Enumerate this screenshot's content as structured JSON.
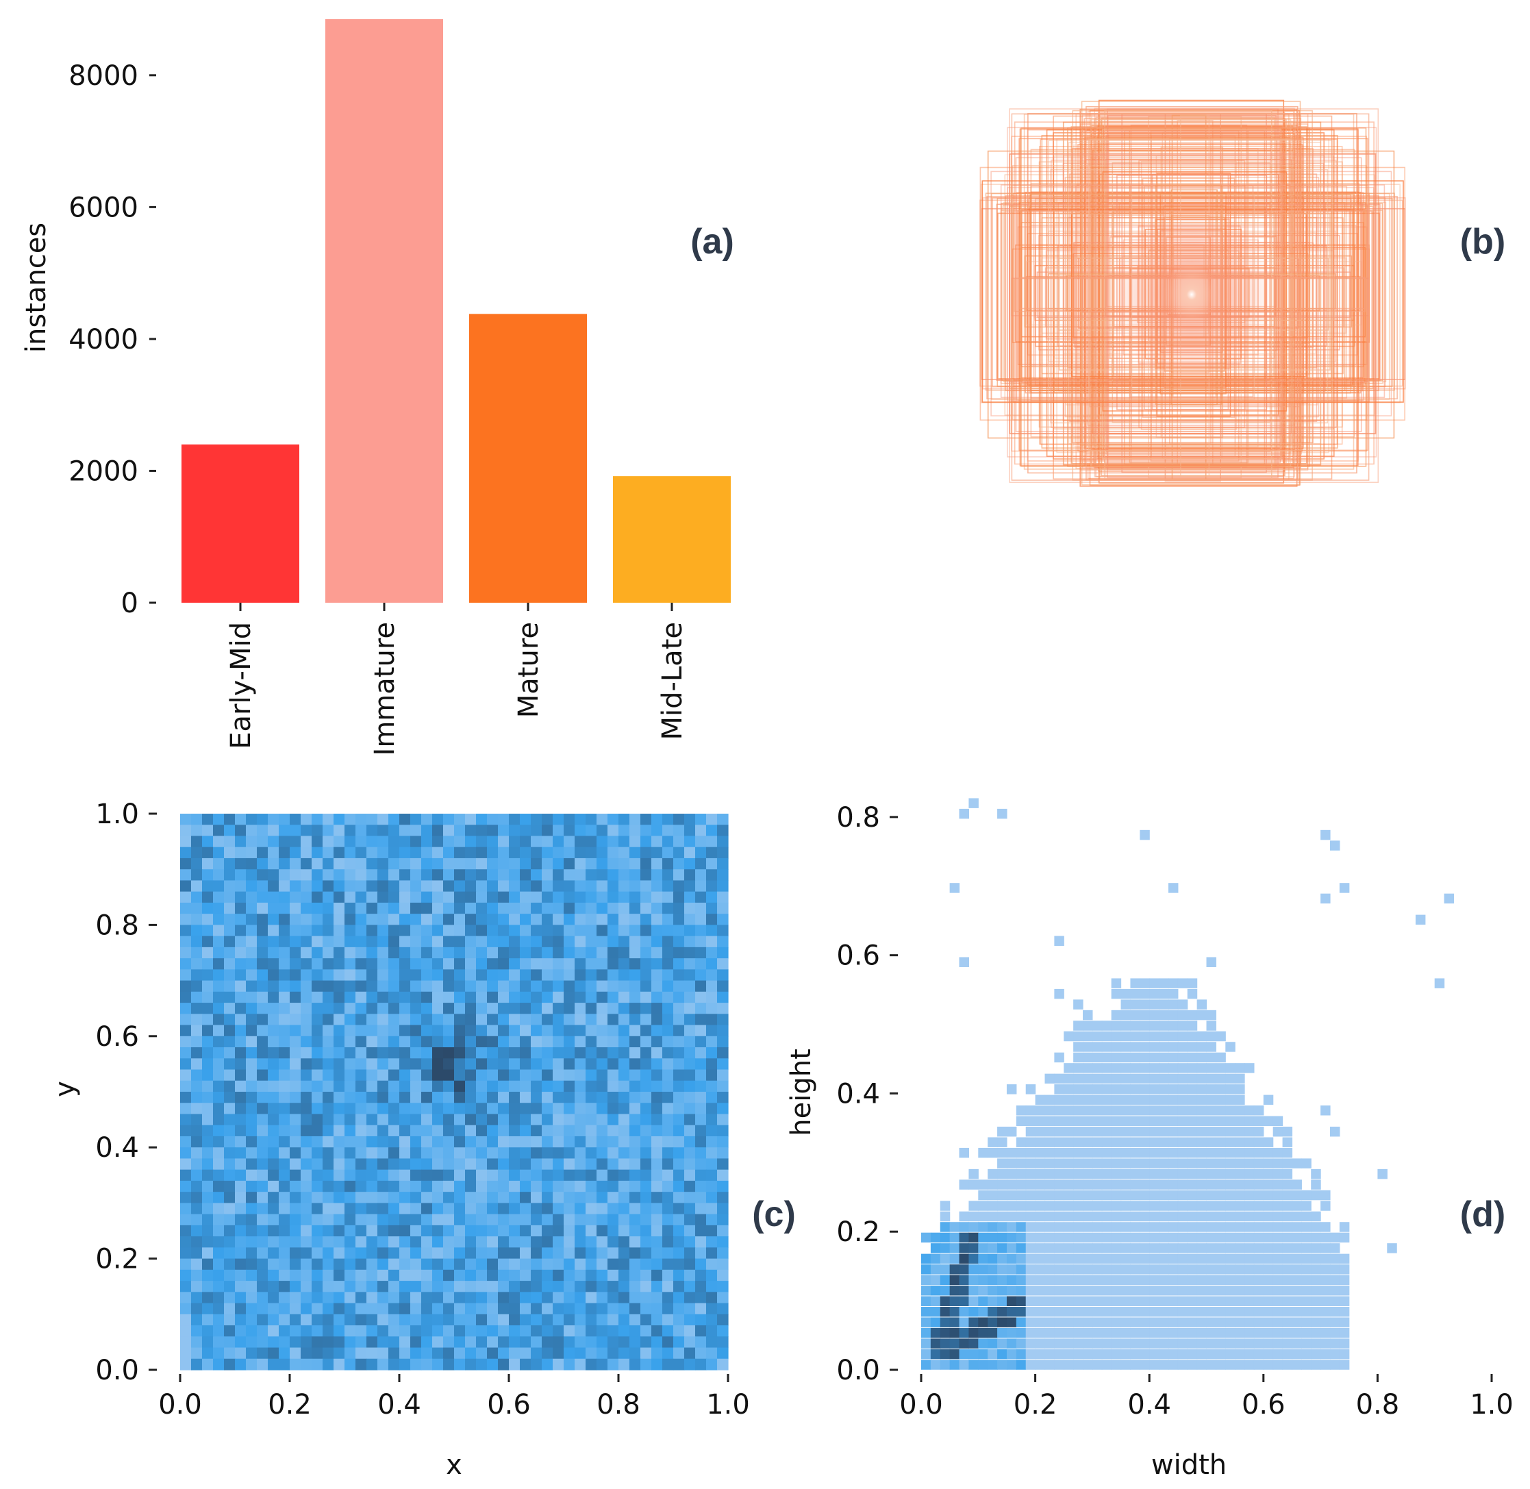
{
  "panels": {
    "a": "(a)",
    "b": "(b)",
    "c": "(c)",
    "d": "(d)"
  },
  "colors": {
    "early_mid": "#ff3535",
    "immature": "#fc9d92",
    "mature": "#fc7320",
    "mid_late": "#fdad21",
    "blue_light": "#a9cbf0",
    "blue_mid": "#3aa2ec",
    "blue_dark": "#2c4a6a"
  },
  "chart_data": [
    {
      "id": "a",
      "type": "bar",
      "categories": [
        "Early-Mid",
        "Immature",
        "Mature",
        "Mid-Late"
      ],
      "values": [
        2400,
        8850,
        4380,
        1920
      ],
      "title": "",
      "xlabel": "",
      "ylabel": "instances",
      "ylim": [
        0,
        8850
      ],
      "yticks": [
        0,
        2000,
        4000,
        6000,
        8000
      ],
      "ytick_labels": [
        "0",
        "2000",
        "4000",
        "6000",
        "8000"
      ],
      "grid": false
    },
    {
      "id": "b",
      "type": "scatter",
      "description_type": "overlaid bounding boxes centered at image center",
      "xlim": [
        0,
        1
      ],
      "ylim": [
        0,
        1
      ]
    },
    {
      "id": "c",
      "type": "heatmap",
      "xlabel": "x",
      "ylabel": "y",
      "xlim": [
        0,
        1
      ],
      "ylim": [
        0,
        1
      ],
      "xticks": [
        0.0,
        0.2,
        0.4,
        0.6,
        0.8,
        1.0
      ],
      "xtick_labels": [
        "0.0",
        "0.2",
        "0.4",
        "0.6",
        "0.8",
        "1.0"
      ],
      "yticks": [
        0.0,
        0.2,
        0.4,
        0.6,
        0.8,
        1.0
      ],
      "ytick_labels": [
        "0.0",
        "0.2",
        "0.4",
        "0.6",
        "0.8",
        "1.0"
      ],
      "bins": 50,
      "peak": [
        0.5,
        0.55
      ]
    },
    {
      "id": "d",
      "type": "heatmap",
      "xlabel": "width",
      "ylabel": "height",
      "xlim": [
        0,
        1
      ],
      "ylim": [
        0,
        0.9
      ],
      "xticks": [
        0.0,
        0.2,
        0.4,
        0.6,
        0.8,
        1.0
      ],
      "xtick_labels": [
        "0.0",
        "0.2",
        "0.4",
        "0.6",
        "0.8",
        "1.0"
      ],
      "yticks": [
        0.0,
        0.2,
        0.4,
        0.6,
        0.8
      ],
      "ytick_labels": [
        "0.0",
        "0.2",
        "0.4",
        "0.6",
        "0.8"
      ],
      "bins": 50,
      "peak": [
        0.07,
        0.1
      ]
    }
  ]
}
